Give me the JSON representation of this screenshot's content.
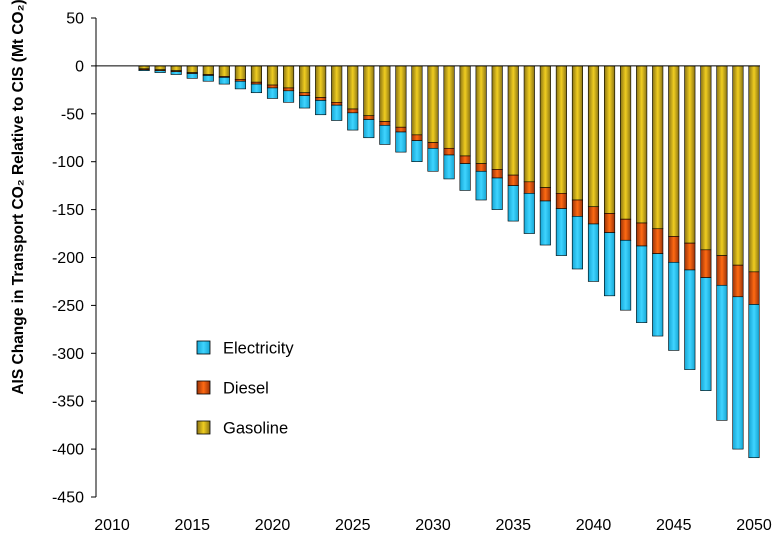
{
  "chart_data": {
    "type": "bar",
    "stacked": true,
    "title": "",
    "xlabel": "",
    "ylabel": "AIS Change in Transport CO₂ Relative to CIS (Mt CO₂)",
    "ylim": [
      -450,
      50
    ],
    "yticks": [
      50,
      0,
      -50,
      -100,
      -150,
      -200,
      -250,
      -300,
      -350,
      -400,
      -450
    ],
    "xticks": [
      2010,
      2015,
      2020,
      2025,
      2030,
      2035,
      2040,
      2045,
      2050
    ],
    "grid": false,
    "legend_position": "lower-left inside plot",
    "x": [
      2011,
      2012,
      2013,
      2014,
      2015,
      2016,
      2017,
      2018,
      2019,
      2020,
      2021,
      2022,
      2023,
      2024,
      2025,
      2026,
      2027,
      2028,
      2029,
      2030,
      2031,
      2032,
      2033,
      2034,
      2035,
      2036,
      2037,
      2038,
      2039,
      2040,
      2041,
      2042,
      2043,
      2044,
      2045,
      2046,
      2047,
      2048,
      2049,
      2050
    ],
    "series": [
      {
        "name": "Gasoline",
        "color": "#d4b020",
        "values": [
          0,
          -3,
          -4,
          -5,
          -7,
          -9,
          -11,
          -14,
          -17,
          -20,
          -23,
          -28,
          -33,
          -38,
          -45,
          -52,
          -58,
          -64,
          -72,
          -80,
          -86,
          -94,
          -102,
          -108,
          -114,
          -121,
          -127,
          -133,
          -140,
          -147,
          -154,
          -160,
          -164,
          -170,
          -178,
          -185,
          -192,
          -198,
          -208,
          -215
        ]
      },
      {
        "name": "Diesel",
        "color": "#e05a10",
        "values": [
          0,
          -1,
          -1,
          -1,
          -1,
          -1,
          -1,
          -2,
          -2,
          -3,
          -3,
          -3,
          -3,
          -3,
          -4,
          -4,
          -4,
          -5,
          -6,
          -6,
          -7,
          -8,
          -8,
          -9,
          -11,
          -12,
          -14,
          -16,
          -17,
          -18,
          -20,
          -22,
          -24,
          -26,
          -27,
          -28,
          -29,
          -31,
          -33,
          -34
        ]
      },
      {
        "name": "Electricity",
        "color": "#2ec4ee",
        "values": [
          0,
          -1,
          -2,
          -3,
          -5,
          -6,
          -7,
          -8,
          -9,
          -11,
          -12,
          -13,
          -15,
          -16,
          -18,
          -19,
          -20,
          -21,
          -22,
          -24,
          -25,
          -28,
          -30,
          -33,
          -37,
          -42,
          -46,
          -49,
          -55,
          -60,
          -66,
          -73,
          -80,
          -86,
          -92,
          -104,
          -118,
          -141,
          -159,
          -160
        ]
      }
    ]
  }
}
